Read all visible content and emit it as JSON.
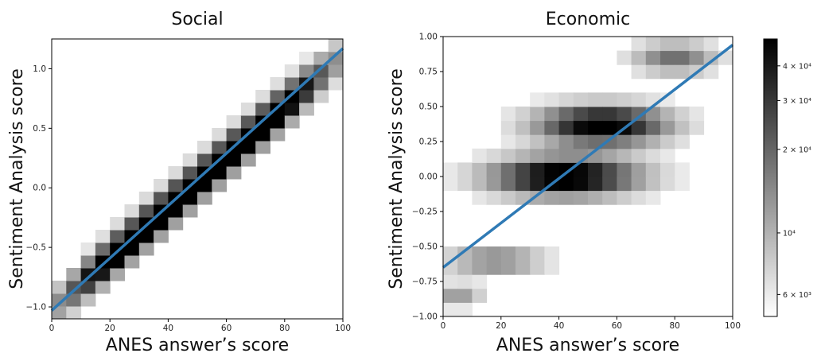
{
  "chart_data": [
    {
      "type": "heatmap",
      "title": "Social",
      "xlabel": "ANES answer’s score",
      "ylabel": "Sentiment Analysis score",
      "xlim": [
        0,
        100
      ],
      "ylim": [
        -1.1,
        1.25
      ],
      "xticks": [
        "0",
        "20",
        "40",
        "60",
        "80",
        "100"
      ],
      "yticks": [
        "−1.0",
        "−0.5",
        "0.0",
        "0.5",
        "1.0"
      ],
      "line": {
        "color": "#2f7ab5",
        "x": [
          0,
          100
        ],
        "y": [
          -1.03,
          1.17
        ]
      },
      "grid": false,
      "legend": "none",
      "bins": {
        "x_edges": [
          0,
          100
        ],
        "y_edges": [
          -1.1,
          1.25
        ],
        "nx": 20,
        "ny": 22
      },
      "density_band": {
        "center_intercept": -1.02,
        "center_slope": 0.0213,
        "half_width": 0.17,
        "peak_x": 50
      }
    },
    {
      "type": "heatmap",
      "title": "Economic",
      "xlabel": "ANES answer’s score",
      "ylabel": "Sentiment Analysis score",
      "xlim": [
        0,
        100
      ],
      "ylim": [
        -1.0,
        1.0
      ],
      "xticks": [
        "0",
        "20",
        "40",
        "60",
        "80",
        "100"
      ],
      "yticks": [
        "−1.00",
        "−0.75",
        "−0.50",
        "−0.25",
        "0.00",
        "0.25",
        "0.50",
        "0.75",
        "1.00"
      ],
      "line": {
        "color": "#2f7ab5",
        "x": [
          0,
          100
        ],
        "y": [
          -0.65,
          0.94
        ]
      },
      "grid": false,
      "legend": "none",
      "bins": {
        "x_edges": [
          0,
          100
        ],
        "y_edges": [
          -1.0,
          1.0
        ],
        "nx": 20,
        "ny": 20
      },
      "clusters": [
        {
          "x": 42,
          "y": 0.0,
          "sx": 18,
          "sy": 0.1,
          "w": 1.0
        },
        {
          "x": 55,
          "y": 0.37,
          "sx": 16,
          "sy": 0.1,
          "w": 0.95
        },
        {
          "x": 18,
          "y": -0.6,
          "sx": 12,
          "sy": 0.07,
          "w": 0.45
        },
        {
          "x": 80,
          "y": 0.85,
          "sx": 10,
          "sy": 0.08,
          "w": 0.5
        },
        {
          "x": 5,
          "y": -0.85,
          "sx": 6,
          "sy": 0.06,
          "w": 0.35
        }
      ],
      "colorbar": {
        "scale": "log",
        "range": [
          5000,
          50000
        ],
        "ticks": [
          {
            "value": 6000,
            "label": "6 × 10³"
          },
          {
            "value": 10000,
            "label": "10⁴"
          },
          {
            "value": 20000,
            "label": "2 × 10⁴"
          },
          {
            "value": 30000,
            "label": "3 × 10⁴"
          },
          {
            "value": 40000,
            "label": "4 × 10⁴"
          }
        ]
      }
    }
  ]
}
